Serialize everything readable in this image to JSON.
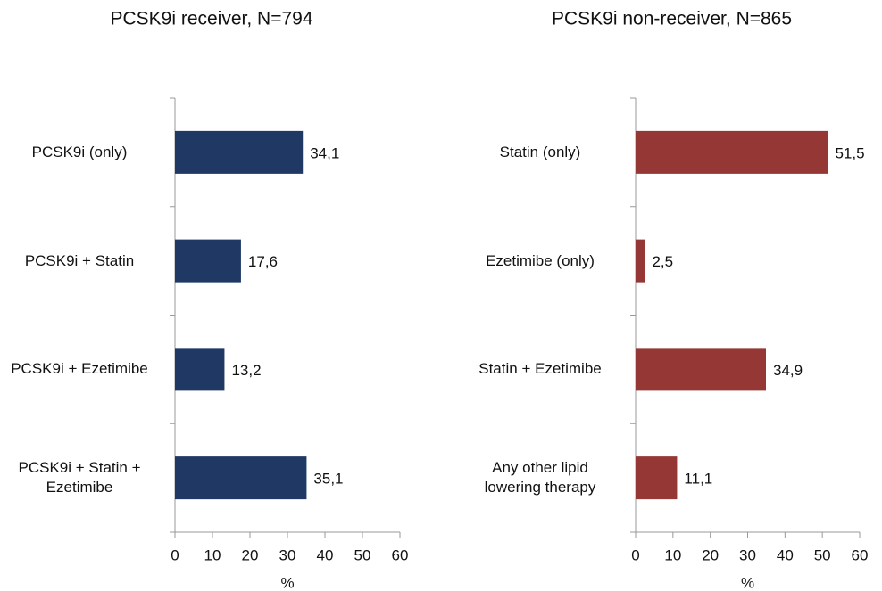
{
  "chart_data": [
    {
      "type": "bar",
      "orientation": "horizontal",
      "title": "PCSK9i receiver, N=794",
      "categories": [
        "PCSK9i (only)",
        "PCSK9i + Statin",
        "PCSK9i + Ezetimibe",
        "PCSK9i + Statin +\nEzetimibe"
      ],
      "values": [
        34.1,
        17.6,
        13.2,
        35.1
      ],
      "value_labels": [
        "34,1",
        "17,6",
        "13,2",
        "35,1"
      ],
      "color": "#1f3864",
      "xlim": [
        0,
        60
      ],
      "xticks": [
        0,
        10,
        20,
        30,
        40,
        50,
        60
      ],
      "xlabel": "%"
    },
    {
      "type": "bar",
      "orientation": "horizontal",
      "title": "PCSK9i non-receiver, N=865",
      "categories": [
        "Statin (only)",
        "Ezetimibe (only)",
        "Statin + Ezetimibe",
        "Any other lipid\nlowering therapy"
      ],
      "values": [
        51.5,
        2.5,
        34.9,
        11.1
      ],
      "value_labels": [
        "51,5",
        "2,5",
        "34,9",
        "11,1"
      ],
      "color": "#953735",
      "xlim": [
        0,
        60
      ],
      "xticks": [
        0,
        10,
        20,
        30,
        40,
        50,
        60
      ],
      "xlabel": "%"
    }
  ]
}
